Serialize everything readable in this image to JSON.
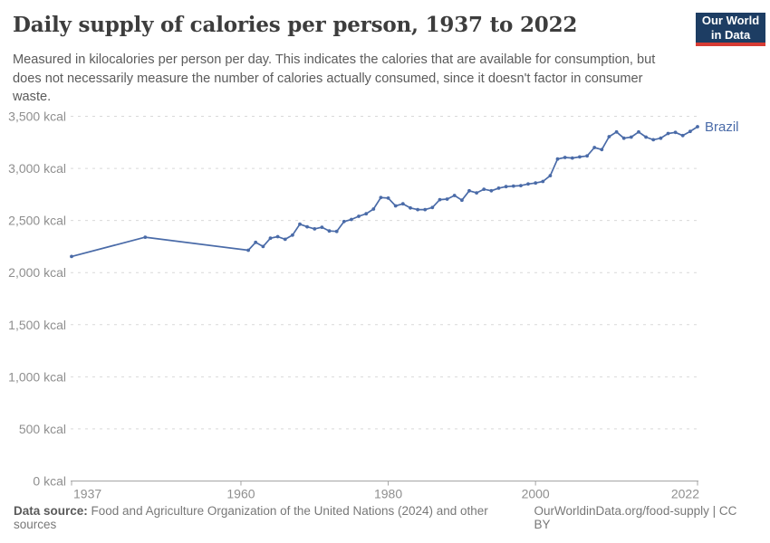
{
  "header": {
    "title": "Daily supply of calories per person, 1937 to 2022",
    "subtitle": "Measured in kilocalories per person per day. This indicates the calories that are available for consumption, but does not necessarily measure the number of calories actually consumed, since it doesn't factor in consumer waste."
  },
  "logo": {
    "line1": "Our World",
    "line2": "in Data",
    "bg_color": "#1d3d63",
    "accent_color": "#d73c34"
  },
  "chart_data": {
    "type": "line",
    "title": "Daily supply of calories per person, 1937 to 2022",
    "x": [
      1937,
      1947,
      1961,
      1962,
      1963,
      1964,
      1965,
      1966,
      1967,
      1968,
      1969,
      1970,
      1971,
      1972,
      1973,
      1974,
      1975,
      1976,
      1977,
      1978,
      1979,
      1980,
      1981,
      1982,
      1983,
      1984,
      1985,
      1986,
      1987,
      1988,
      1989,
      1990,
      1991,
      1992,
      1993,
      1994,
      1995,
      1996,
      1997,
      1998,
      1999,
      2000,
      2001,
      2002,
      2003,
      2004,
      2005,
      2006,
      2007,
      2008,
      2009,
      2010,
      2011,
      2012,
      2013,
      2014,
      2015,
      2016,
      2017,
      2018,
      2019,
      2020,
      2021,
      2022
    ],
    "series": [
      {
        "name": "Brazil",
        "color": "#4a6ba8",
        "values": [
          2155,
          2340,
          2215,
          2290,
          2250,
          2330,
          2345,
          2320,
          2360,
          2465,
          2440,
          2420,
          2435,
          2400,
          2395,
          2490,
          2510,
          2540,
          2565,
          2610,
          2720,
          2715,
          2640,
          2660,
          2620,
          2605,
          2605,
          2625,
          2700,
          2705,
          2740,
          2695,
          2785,
          2765,
          2800,
          2785,
          2810,
          2825,
          2830,
          2835,
          2850,
          2860,
          2875,
          2930,
          3090,
          3105,
          3100,
          3110,
          3120,
          3200,
          3180,
          3305,
          3350,
          3290,
          3300,
          3350,
          3300,
          3275,
          3290,
          3335,
          3345,
          3315,
          3355,
          3400
        ]
      }
    ],
    "xlabel": "",
    "ylabel": "",
    "xlim": [
      1937,
      2022
    ],
    "ylim": [
      0,
      3500
    ],
    "ytick_step": 500,
    "ytick_suffix": " kcal",
    "yticks_labels": [
      "0 kcal",
      "500 kcal",
      "1,000 kcal",
      "1,500 kcal",
      "2,000 kcal",
      "2,500 kcal",
      "3,000 kcal",
      "3,500 kcal"
    ],
    "xticks": [
      1937,
      1960,
      1980,
      2000,
      2022
    ],
    "grid": "horizontal-dashed",
    "legend_position": "line-end-label"
  },
  "colors": {
    "line": "#4a6ba8",
    "grid": "#d9d9d9",
    "axis": "#a5a5a5",
    "tick_label": "#8f8f8f",
    "title": "#3d3d3d",
    "subtitle": "#5b5b5b"
  },
  "footer": {
    "source_label": "Data source:",
    "source_text": " Food and Agriculture Organization of the United Nations (2024) and other sources",
    "link_text": "OurWorldinData.org/food-supply",
    "separator": " | ",
    "license_text": "CC BY"
  }
}
